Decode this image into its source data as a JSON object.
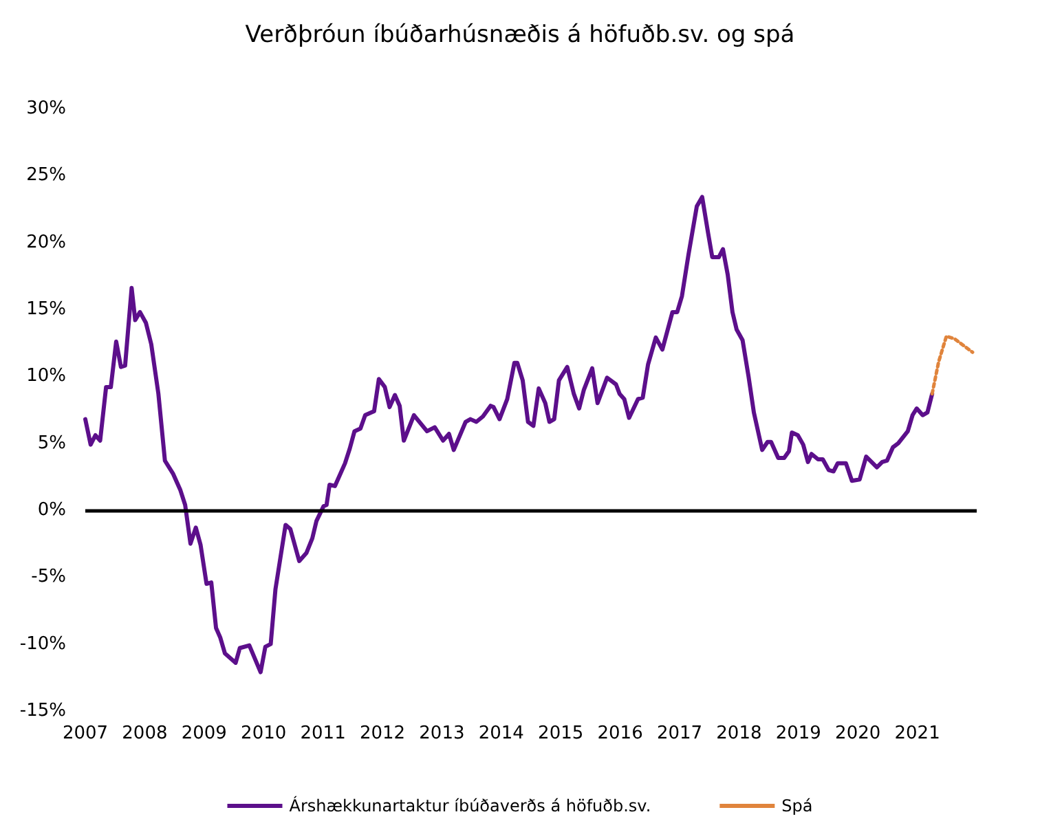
{
  "chart_data": {
    "type": "line",
    "title": "Verðþróun íbúðarhúsnæðis á höfuðb.sv. og spá",
    "xlim": [
      2007,
      2022
    ],
    "xticks": [
      2007,
      2008,
      2009,
      2010,
      2011,
      2012,
      2013,
      2014,
      2015,
      2016,
      2017,
      2018,
      2019,
      2020,
      2021
    ],
    "ylim": [
      -15,
      30
    ],
    "yticks": [
      {
        "value": -15,
        "label": "-15%"
      },
      {
        "value": -10,
        "label": "-10%"
      },
      {
        "value": -5,
        "label": "-5%"
      },
      {
        "value": 0,
        "label": "0%"
      },
      {
        "value": 5,
        "label": "5%"
      },
      {
        "value": 10,
        "label": "10%"
      },
      {
        "value": 15,
        "label": "15%"
      },
      {
        "value": 20,
        "label": "20%"
      },
      {
        "value": 25,
        "label": "25%"
      },
      {
        "value": 30,
        "label": "30%"
      }
    ],
    "ref_lines": [
      {
        "axis": "y",
        "value": 0,
        "color": "#000000"
      }
    ],
    "legend": "bottom",
    "marker": "none",
    "series": [
      {
        "name": "Árshækkunartaktur íbúðaverðs á höfuðb.sv.",
        "color": "#5c0f8b",
        "line_style": "solid",
        "x": [
          2007.0,
          2007.09,
          2007.17,
          2007.25,
          2007.35,
          2007.43,
          2007.52,
          2007.6,
          2007.67,
          2007.78,
          2007.84,
          2007.92,
          2008.02,
          2008.11,
          2008.23,
          2008.34,
          2008.48,
          2008.6,
          2008.68,
          2008.77,
          2008.86,
          2008.94,
          2009.04,
          2009.12,
          2009.2,
          2009.27,
          2009.35,
          2009.53,
          2009.6,
          2009.76,
          2009.95,
          2010.03,
          2010.12,
          2010.2,
          2010.37,
          2010.45,
          2010.6,
          2010.72,
          2010.82,
          2010.89,
          2011.01,
          2011.06,
          2011.11,
          2011.2,
          2011.3,
          2011.37,
          2011.45,
          2011.53,
          2011.63,
          2011.71,
          2011.86,
          2011.94,
          2012.04,
          2012.12,
          2012.21,
          2012.29,
          2012.36,
          2012.53,
          2012.75,
          2012.88,
          2013.02,
          2013.12,
          2013.2,
          2013.4,
          2013.48,
          2013.58,
          2013.69,
          2013.82,
          2013.87,
          2013.97,
          2014.1,
          2014.22,
          2014.27,
          2014.36,
          2014.45,
          2014.54,
          2014.63,
          2014.74,
          2014.81,
          2014.89,
          2014.97,
          2015.11,
          2015.22,
          2015.31,
          2015.39,
          2015.53,
          2015.62,
          2015.78,
          2015.84,
          2015.93,
          2015.99,
          2016.07,
          2016.15,
          2016.3,
          2016.38,
          2016.47,
          2016.6,
          2016.71,
          2016.88,
          2016.96,
          2017.04,
          2017.15,
          2017.29,
          2017.38,
          2017.48,
          2017.55,
          2017.66,
          2017.73,
          2017.81,
          2017.89,
          2017.96,
          2018.06,
          2018.16,
          2018.25,
          2018.39,
          2018.48,
          2018.54,
          2018.66,
          2018.76,
          2018.84,
          2018.89,
          2018.99,
          2019.08,
          2019.16,
          2019.22,
          2019.33,
          2019.41,
          2019.51,
          2019.59,
          2019.66,
          2019.8,
          2019.9,
          2020.03,
          2020.14,
          2020.32,
          2020.41,
          2020.49,
          2020.59,
          2020.68,
          2020.84,
          2020.92,
          2020.99,
          2021.09,
          2021.17,
          2021.25
        ],
        "values": [
          6.8,
          4.9,
          5.6,
          5.2,
          9.2,
          9.2,
          12.6,
          10.7,
          10.8,
          16.6,
          14.2,
          14.8,
          14.0,
          12.4,
          8.7,
          3.7,
          2.7,
          1.5,
          0.4,
          -2.5,
          -1.3,
          -2.6,
          -5.5,
          -5.4,
          -8.8,
          -9.5,
          -10.7,
          -11.4,
          -10.3,
          -10.1,
          -12.1,
          -10.2,
          -10.0,
          -5.9,
          -1.1,
          -1.4,
          -3.8,
          -3.2,
          -2.1,
          -0.8,
          0.3,
          0.4,
          1.9,
          1.8,
          2.8,
          3.5,
          4.6,
          5.9,
          6.1,
          7.1,
          7.4,
          9.8,
          9.2,
          7.7,
          8.6,
          7.8,
          5.2,
          7.1,
          5.9,
          6.2,
          5.2,
          5.7,
          4.5,
          6.6,
          6.8,
          6.6,
          7.0,
          7.8,
          7.7,
          6.8,
          8.3,
          11.0,
          11.0,
          9.7,
          6.6,
          6.3,
          9.1,
          8.0,
          6.6,
          6.8,
          9.7,
          10.7,
          8.7,
          7.6,
          9.0,
          10.6,
          8.0,
          9.9,
          9.7,
          9.4,
          8.7,
          8.3,
          6.9,
          8.3,
          8.4,
          10.9,
          12.9,
          12.0,
          14.8,
          14.8,
          16.0,
          19.1,
          22.7,
          23.4,
          20.7,
          18.9,
          18.9,
          19.5,
          17.6,
          14.8,
          13.5,
          12.7,
          10.0,
          7.3,
          4.5,
          5.1,
          5.1,
          3.9,
          3.9,
          4.4,
          5.8,
          5.6,
          4.9,
          3.6,
          4.2,
          3.8,
          3.8,
          3.0,
          2.9,
          3.5,
          3.5,
          2.2,
          2.3,
          4.0,
          3.2,
          3.6,
          3.7,
          4.7,
          5.0,
          5.9,
          7.1,
          7.6,
          7.1,
          7.3,
          8.7
        ]
      },
      {
        "name": "Spá",
        "color": "#e0843c",
        "line_style": "dotted",
        "x": [
          2021.25,
          2021.36,
          2021.49,
          2021.63,
          2021.93
        ],
        "values": [
          8.7,
          11.1,
          13.0,
          12.8,
          11.8
        ]
      }
    ]
  }
}
